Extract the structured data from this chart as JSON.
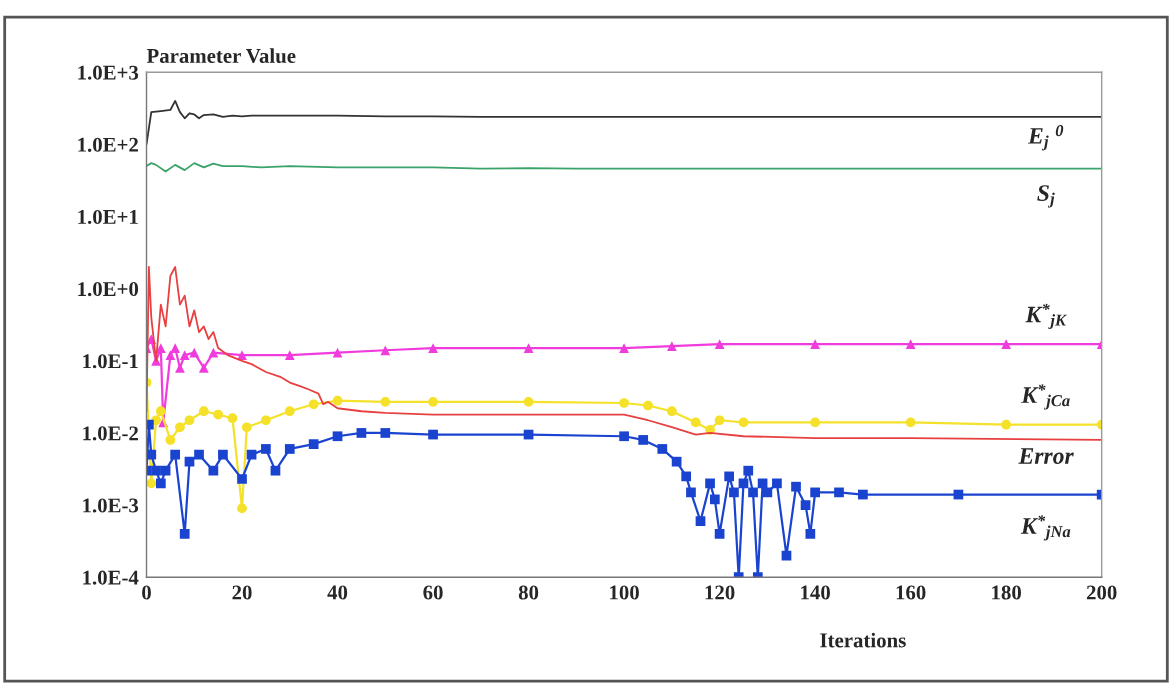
{
  "chart_data": {
    "type": "line",
    "xlabel": "Iterations",
    "ylabel": "Parameter Value",
    "log": "y",
    "grid": false,
    "legend": false,
    "xlim": [
      0,
      200
    ],
    "xticks": [
      0,
      20,
      40,
      60,
      80,
      100,
      120,
      140,
      160,
      180,
      200
    ],
    "ylim": [
      0.0001,
      1000
    ],
    "yticks": [
      {
        "value": 0.0001,
        "label": "1.0E-4"
      },
      {
        "value": 0.001,
        "label": "1.0E-3"
      },
      {
        "value": 0.01,
        "label": "1.0E-2"
      },
      {
        "value": 0.1,
        "label": "1.0E-1"
      },
      {
        "value": 1,
        "label": "1.0E+0"
      },
      {
        "value": 10,
        "label": "1.0E+1"
      },
      {
        "value": 100,
        "label": "1.0E+2"
      },
      {
        "value": 1000,
        "label": "1.0E+3"
      }
    ],
    "series": [
      {
        "name": "E$_{j}$ $^{0}$",
        "color": "#333333",
        "marker": "none",
        "x": [
          0,
          1,
          3,
          5,
          6,
          7,
          8,
          9,
          10,
          11,
          12,
          14,
          16,
          18,
          20,
          22,
          30,
          40,
          50,
          60,
          70,
          80,
          100,
          120,
          150,
          200
        ],
        "values": [
          100,
          280,
          290,
          300,
          400,
          280,
          230,
          270,
          260,
          230,
          255,
          260,
          240,
          250,
          245,
          250,
          250,
          250,
          245,
          245,
          240,
          240,
          240,
          240,
          240,
          240
        ]
      },
      {
        "name": "S$_{j}$",
        "color": "#3aa36a",
        "marker": "none",
        "x": [
          0,
          1,
          2,
          4,
          6,
          8,
          10,
          12,
          14,
          16,
          20,
          24,
          30,
          40,
          50,
          60,
          70,
          80,
          90,
          100,
          110,
          150,
          200
        ],
        "values": [
          50,
          55,
          52,
          42,
          52,
          44,
          55,
          48,
          54,
          50,
          50,
          48,
          50,
          48,
          48,
          48,
          46,
          47,
          46,
          46,
          46,
          46,
          46
        ]
      },
      {
        "name": "K$^{*}$$_{jK}$",
        "color": "#f03cdc",
        "marker": "triangle",
        "x": [
          0,
          1,
          2,
          3,
          3.5,
          5,
          6,
          7,
          8,
          10,
          12,
          14,
          20,
          30,
          40,
          50,
          60,
          80,
          100,
          110,
          120,
          140,
          160,
          180,
          200
        ],
        "values": [
          0.15,
          0.2,
          0.1,
          0.15,
          0.014,
          0.12,
          0.15,
          0.08,
          0.12,
          0.13,
          0.08,
          0.13,
          0.12,
          0.12,
          0.13,
          0.14,
          0.15,
          0.15,
          0.15,
          0.16,
          0.17,
          0.17,
          0.17,
          0.17,
          0.17
        ]
      },
      {
        "name": "K$^{*}$$_{jCa}$",
        "color": "#f5e12a",
        "marker": "circle",
        "x": [
          0,
          0.5,
          1,
          2,
          3,
          5,
          7,
          9,
          10,
          12,
          15,
          18,
          20,
          21,
          25,
          30,
          35,
          40,
          50,
          60,
          80,
          100,
          105,
          110,
          115,
          118,
          120,
          125,
          140,
          160,
          180,
          200
        ],
        "values": [
          0.05,
          null,
          0.002,
          0.015,
          0.02,
          0.008,
          0.012,
          0.015,
          null,
          0.02,
          0.018,
          0.016,
          0.0009,
          0.012,
          0.015,
          0.02,
          0.025,
          0.028,
          0.027,
          0.027,
          0.027,
          0.026,
          0.024,
          0.02,
          0.014,
          0.011,
          0.015,
          0.014,
          0.014,
          0.014,
          0.013,
          0.013
        ]
      },
      {
        "name": "Error",
        "color": "#e84040",
        "marker": "none",
        "x": [
          0,
          0.5,
          1,
          2,
          3,
          4,
          5,
          6,
          7,
          8,
          9,
          10,
          11,
          12,
          13,
          14,
          15,
          17,
          20,
          22,
          25,
          28,
          30,
          32,
          34,
          36,
          37,
          38,
          40,
          45,
          50,
          60,
          80,
          100,
          105,
          110,
          115,
          118,
          125,
          140,
          160,
          200
        ],
        "values": [
          0.02,
          2.0,
          0.4,
          0.1,
          0.6,
          0.3,
          1.5,
          2.0,
          0.6,
          0.8,
          0.3,
          0.5,
          0.25,
          0.3,
          0.2,
          0.25,
          0.15,
          0.12,
          0.1,
          0.09,
          0.07,
          0.06,
          0.05,
          0.045,
          0.04,
          0.035,
          0.025,
          0.027,
          0.022,
          0.02,
          0.019,
          0.018,
          0.018,
          0.018,
          0.015,
          0.012,
          0.0095,
          0.01,
          0.009,
          0.0085,
          0.0085,
          0.008
        ]
      },
      {
        "name": "K$^{*}$$_{jNa}$",
        "color": "#1a44d0",
        "marker": "square",
        "x": [
          0,
          0.5,
          1,
          2,
          3,
          4,
          6,
          8,
          9,
          11,
          14,
          16,
          20,
          22,
          25,
          27,
          30,
          35,
          40,
          45,
          50,
          60,
          80,
          100,
          104,
          108,
          111,
          113,
          114,
          116,
          118,
          119,
          120,
          122,
          123,
          124,
          125,
          126,
          127,
          128,
          129,
          130,
          132,
          134,
          136,
          138,
          139,
          140,
          145,
          150,
          170,
          200
        ],
        "values": [
          0.003,
          0.013,
          0.005,
          0.003,
          0.002,
          0.003,
          0.005,
          0.0004,
          0.004,
          0.005,
          0.003,
          0.005,
          0.0023,
          0.005,
          0.006,
          0.003,
          0.006,
          0.007,
          0.009,
          0.01,
          0.01,
          0.0095,
          0.0095,
          0.009,
          0.008,
          0.006,
          0.004,
          0.0025,
          0.0015,
          0.0006,
          0.002,
          0.0012,
          0.0004,
          0.0025,
          0.0015,
          0.0001,
          0.002,
          0.003,
          0.0015,
          0.0001,
          0.002,
          0.0015,
          0.002,
          0.0002,
          0.0018,
          0.001,
          0.0004,
          0.0015,
          0.0015,
          0.0014,
          0.0014,
          0.0014
        ]
      }
    ]
  }
}
